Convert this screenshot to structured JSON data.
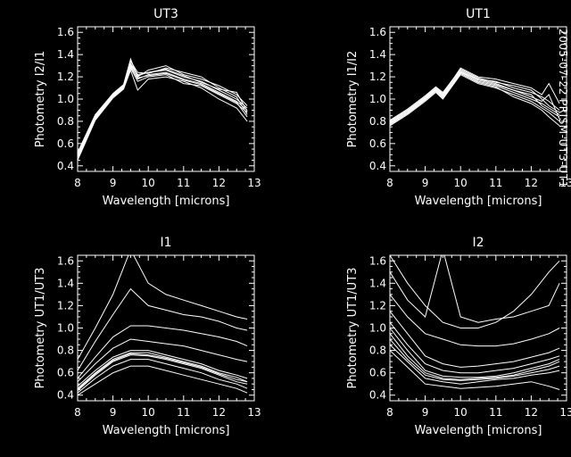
{
  "side_label": "2005-07-22 PRISM-UT3-UT1",
  "chart_data": [
    {
      "type": "line",
      "title": "UT3",
      "xlabel": "Wavelength [microns]",
      "ylabel": "Photometry I2/I1",
      "xlim": [
        8,
        13
      ],
      "ylim": [
        0.35,
        1.65
      ],
      "xticks": [
        "8",
        "9",
        "10",
        "11",
        "12",
        "13"
      ],
      "yticks": [
        "0.4",
        "0.6",
        "0.8",
        "1.0",
        "1.2",
        "1.4",
        "1.6"
      ],
      "x": [
        8.0,
        8.5,
        9.0,
        9.3,
        9.5,
        9.7,
        10.0,
        10.5,
        11.0,
        11.5,
        12.0,
        12.5,
        12.8
      ],
      "series": [
        {
          "values": [
            0.46,
            0.82,
            1.02,
            1.1,
            1.28,
            1.16,
            1.2,
            1.22,
            1.14,
            1.12,
            1.04,
            0.96,
            0.88
          ]
        },
        {
          "values": [
            0.5,
            0.84,
            1.04,
            1.12,
            1.32,
            1.22,
            1.24,
            1.26,
            1.2,
            1.16,
            1.08,
            1.0,
            0.92
          ]
        },
        {
          "values": [
            0.48,
            0.83,
            1.03,
            1.11,
            1.3,
            1.18,
            1.22,
            1.24,
            1.18,
            1.14,
            1.06,
            0.98,
            0.9
          ]
        },
        {
          "values": [
            0.52,
            0.86,
            1.05,
            1.13,
            1.36,
            1.2,
            1.26,
            1.3,
            1.22,
            1.18,
            1.12,
            1.04,
            0.94
          ]
        },
        {
          "values": [
            0.45,
            0.81,
            1.01,
            1.09,
            1.26,
            1.08,
            1.18,
            1.2,
            1.16,
            1.1,
            1.0,
            0.92,
            0.8
          ]
        },
        {
          "values": [
            0.49,
            0.85,
            1.04,
            1.12,
            1.34,
            1.24,
            1.23,
            1.28,
            1.24,
            1.2,
            1.1,
            1.02,
            0.86
          ]
        },
        {
          "values": [
            0.47,
            0.82,
            1.02,
            1.1,
            1.29,
            1.19,
            1.21,
            1.23,
            1.17,
            1.13,
            1.05,
            0.97,
            0.84
          ]
        },
        {
          "values": [
            0.51,
            0.84,
            1.03,
            1.11,
            1.31,
            1.21,
            1.24,
            1.27,
            1.21,
            1.15,
            1.09,
            1.06,
            0.89
          ]
        }
      ]
    },
    {
      "type": "line",
      "title": "UT1",
      "xlabel": "Wavelength [microns]",
      "ylabel": "Photometry I1/I2",
      "xlim": [
        8,
        13
      ],
      "ylim": [
        0.35,
        1.65
      ],
      "xticks": [
        "8",
        "9",
        "10",
        "11",
        "12",
        "13"
      ],
      "yticks": [
        "0.4",
        "0.6",
        "0.8",
        "1.0",
        "1.2",
        "1.4",
        "1.6"
      ],
      "x": [
        8.0,
        8.5,
        9.0,
        9.3,
        9.5,
        10.0,
        10.5,
        11.0,
        11.5,
        12.0,
        12.3,
        12.5,
        12.8
      ],
      "series": [
        {
          "values": [
            0.78,
            0.88,
            1.0,
            1.08,
            1.02,
            1.24,
            1.16,
            1.12,
            1.06,
            1.0,
            0.96,
            0.92,
            0.86
          ]
        },
        {
          "values": [
            0.8,
            0.9,
            1.02,
            1.1,
            1.05,
            1.26,
            1.18,
            1.16,
            1.1,
            1.06,
            1.02,
            0.98,
            0.9
          ]
        },
        {
          "values": [
            0.76,
            0.86,
            0.98,
            1.06,
            1.0,
            1.22,
            1.14,
            1.1,
            1.04,
            0.98,
            0.92,
            0.88,
            0.8
          ]
        },
        {
          "values": [
            0.79,
            0.89,
            1.01,
            1.09,
            1.04,
            1.28,
            1.2,
            1.18,
            1.14,
            1.1,
            1.04,
            1.14,
            0.96
          ]
        },
        {
          "values": [
            0.77,
            0.87,
            0.99,
            1.07,
            1.01,
            1.23,
            1.15,
            1.11,
            1.02,
            0.96,
            0.9,
            0.84,
            0.76
          ]
        },
        {
          "values": [
            0.81,
            0.91,
            1.03,
            1.11,
            1.06,
            1.27,
            1.19,
            1.15,
            1.12,
            1.08,
            1.0,
            0.94,
            0.88
          ]
        },
        {
          "values": [
            0.78,
            0.88,
            1.0,
            1.08,
            1.03,
            1.25,
            1.17,
            1.13,
            1.08,
            1.02,
            0.98,
            1.04,
            0.82
          ]
        },
        {
          "values": [
            0.8,
            0.9,
            1.01,
            1.09,
            1.04,
            1.24,
            1.18,
            1.14,
            1.08,
            1.04,
            0.94,
            0.9,
            0.84
          ]
        }
      ]
    },
    {
      "type": "line",
      "title": "I1",
      "xlabel": "Wavelength [microns]",
      "ylabel": "Photometry UT1/UT3",
      "xlim": [
        8,
        13
      ],
      "ylim": [
        0.35,
        1.65
      ],
      "xticks": [
        "8",
        "9",
        "10",
        "11",
        "12",
        "13"
      ],
      "yticks": [
        "0.4",
        "0.6",
        "0.8",
        "1.0",
        "1.2",
        "1.4",
        "1.6"
      ],
      "x": [
        8.0,
        8.5,
        9.0,
        9.5,
        10.0,
        10.5,
        11.0,
        11.5,
        12.0,
        12.5,
        12.8
      ],
      "series": [
        {
          "values": [
            0.72,
            1.0,
            1.3,
            1.7,
            1.4,
            1.3,
            1.25,
            1.2,
            1.15,
            1.1,
            1.08
          ]
        },
        {
          "values": [
            0.62,
            0.88,
            1.12,
            1.35,
            1.2,
            1.16,
            1.12,
            1.1,
            1.06,
            1.0,
            0.98
          ]
        },
        {
          "values": [
            0.55,
            0.74,
            0.92,
            1.02,
            1.02,
            1.0,
            0.98,
            0.95,
            0.92,
            0.88,
            0.84
          ]
        },
        {
          "values": [
            0.52,
            0.68,
            0.82,
            0.9,
            0.88,
            0.86,
            0.84,
            0.8,
            0.76,
            0.72,
            0.7
          ]
        },
        {
          "values": [
            0.48,
            0.62,
            0.74,
            0.8,
            0.8,
            0.76,
            0.72,
            0.68,
            0.62,
            0.58,
            0.55
          ]
        },
        {
          "values": [
            0.46,
            0.6,
            0.72,
            0.78,
            0.78,
            0.74,
            0.7,
            0.66,
            0.6,
            0.56,
            0.52
          ]
        },
        {
          "values": [
            0.44,
            0.58,
            0.7,
            0.76,
            0.75,
            0.72,
            0.68,
            0.64,
            0.58,
            0.52,
            0.5
          ]
        },
        {
          "values": [
            0.42,
            0.55,
            0.66,
            0.72,
            0.72,
            0.68,
            0.64,
            0.6,
            0.54,
            0.5,
            0.46
          ]
        },
        {
          "values": [
            0.45,
            0.59,
            0.71,
            0.77,
            0.76,
            0.73,
            0.69,
            0.65,
            0.59,
            0.54,
            0.52
          ]
        },
        {
          "values": [
            0.4,
            0.5,
            0.6,
            0.66,
            0.66,
            0.62,
            0.58,
            0.54,
            0.5,
            0.46,
            0.42
          ]
        }
      ]
    },
    {
      "type": "line",
      "title": "I2",
      "xlabel": "Wavelength [microns]",
      "ylabel": "Photometry UT1/UT3",
      "xlim": [
        8,
        13
      ],
      "ylim": [
        0.35,
        1.65
      ],
      "xticks": [
        "8",
        "9",
        "10",
        "11",
        "12",
        "13"
      ],
      "yticks": [
        "0.4",
        "0.6",
        "0.8",
        "1.0",
        "1.2",
        "1.4",
        "1.6"
      ],
      "x": [
        8.0,
        8.5,
        9.0,
        9.5,
        10.0,
        10.5,
        11.0,
        11.5,
        12.0,
        12.5,
        12.8
      ],
      "series": [
        {
          "values": [
            1.65,
            1.4,
            1.2,
            1.05,
            1.0,
            1.0,
            1.05,
            1.15,
            1.3,
            1.5,
            1.6
          ]
        },
        {
          "values": [
            1.5,
            1.25,
            1.1,
            1.7,
            1.1,
            1.05,
            1.08,
            1.1,
            1.15,
            1.2,
            1.4
          ]
        },
        {
          "values": [
            1.3,
            1.1,
            0.95,
            0.9,
            0.85,
            0.84,
            0.84,
            0.86,
            0.9,
            0.95,
            1.0
          ]
        },
        {
          "values": [
            1.15,
            0.95,
            0.75,
            0.68,
            0.65,
            0.66,
            0.68,
            0.7,
            0.74,
            0.78,
            0.82
          ]
        },
        {
          "values": [
            1.05,
            0.85,
            0.68,
            0.62,
            0.6,
            0.6,
            0.62,
            0.64,
            0.68,
            0.72,
            0.75
          ]
        },
        {
          "values": [
            1.0,
            0.8,
            0.62,
            0.57,
            0.56,
            0.56,
            0.57,
            0.6,
            0.64,
            0.68,
            0.72
          ]
        },
        {
          "values": [
            0.95,
            0.75,
            0.6,
            0.55,
            0.54,
            0.55,
            0.56,
            0.58,
            0.62,
            0.66,
            0.7
          ]
        },
        {
          "values": [
            0.9,
            0.72,
            0.58,
            0.54,
            0.53,
            0.54,
            0.55,
            0.57,
            0.6,
            0.63,
            0.66
          ]
        },
        {
          "values": [
            0.85,
            0.7,
            0.55,
            0.52,
            0.5,
            0.52,
            0.54,
            0.55,
            0.58,
            0.6,
            0.62
          ]
        },
        {
          "values": [
            0.8,
            0.65,
            0.5,
            0.48,
            0.46,
            0.47,
            0.48,
            0.5,
            0.52,
            0.48,
            0.45
          ]
        }
      ]
    }
  ]
}
